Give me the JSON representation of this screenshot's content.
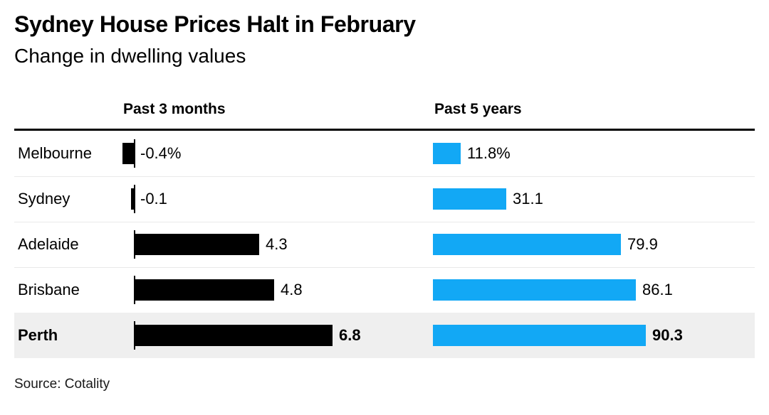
{
  "chart_data": {
    "type": "bar",
    "orientation": "horizontal",
    "title": "Sydney House Prices Halt in February",
    "subtitle": "Change in dwelling values",
    "source": "Source: Cotality",
    "categories": [
      "Melbourne",
      "Sydney",
      "Adelaide",
      "Brisbane",
      "Perth"
    ],
    "highlighted_category": "Perth",
    "series": [
      {
        "name": "Past 3 months",
        "unit": "%",
        "color": "#000000",
        "values": [
          -0.4,
          -0.1,
          4.3,
          4.8,
          6.8
        ],
        "labels": [
          "-0.4%",
          "-0.1",
          "4.3",
          "4.8",
          "6.8"
        ],
        "axis_range": [
          -0.5,
          7
        ]
      },
      {
        "name": "Past 5 years",
        "unit": "%",
        "color": "#12a8f5",
        "values": [
          11.8,
          31.1,
          79.9,
          86.1,
          90.3
        ],
        "labels": [
          "11.8%",
          "31.1",
          "79.9",
          "86.1",
          "90.3"
        ],
        "axis_range": [
          0,
          95
        ]
      }
    ],
    "grid": false,
    "legend_position": "none",
    "colors": {
      "bar_past_3_months": "#000000",
      "bar_past_5_years": "#12a8f5",
      "highlight_row_bg": "#efefef",
      "row_divider": "#e9e9e9",
      "header_rule": "#000000",
      "text": "#000000"
    }
  }
}
